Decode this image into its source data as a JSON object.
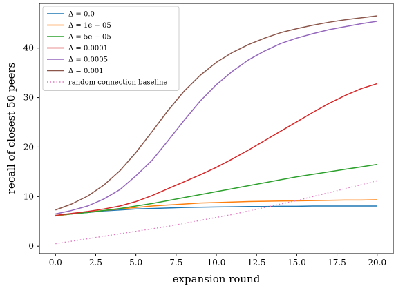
{
  "chart_data": {
    "type": "line",
    "xlabel": "expansion round",
    "ylabel": "recall of closest 50 peers",
    "xlim": [
      -1,
      21
    ],
    "ylim": [
      -1.5,
      49
    ],
    "xticks": [
      0,
      2.5,
      5,
      7.5,
      10,
      12.5,
      15,
      17.5,
      20
    ],
    "xtick_labels": [
      "0.0",
      "2.5",
      "5.0",
      "7.5",
      "10.0",
      "12.5",
      "15.0",
      "17.5",
      "20.0"
    ],
    "yticks": [
      0,
      10,
      20,
      30,
      40
    ],
    "ytick_labels": [
      "0",
      "10",
      "20",
      "30",
      "40"
    ],
    "grid": false,
    "legend_position": "top-left",
    "x": [
      0,
      1,
      2,
      3,
      4,
      5,
      6,
      7,
      8,
      9,
      10,
      11,
      12,
      13,
      14,
      15,
      16,
      17,
      18,
      19,
      20
    ],
    "series": [
      {
        "name": "Δ = 0.0",
        "color": "#1f77b4",
        "style": "solid",
        "values": [
          6.1,
          6.5,
          6.8,
          7.1,
          7.3,
          7.5,
          7.6,
          7.7,
          7.8,
          7.85,
          7.9,
          7.95,
          8.0,
          8.0,
          8.05,
          8.05,
          8.1,
          8.1,
          8.1,
          8.1,
          8.1
        ]
      },
      {
        "name": "Δ = 1e − 05",
        "color": "#ff7f0e",
        "style": "solid",
        "values": [
          6.1,
          6.5,
          6.9,
          7.2,
          7.5,
          7.8,
          8.1,
          8.3,
          8.5,
          8.7,
          8.8,
          8.9,
          9.0,
          9.05,
          9.1,
          9.15,
          9.2,
          9.25,
          9.3,
          9.3,
          9.35
        ]
      },
      {
        "name": "Δ = 5e − 05",
        "color": "#2ca02c",
        "style": "solid",
        "values": [
          6.2,
          6.5,
          6.8,
          7.2,
          7.6,
          8.1,
          8.6,
          9.2,
          9.8,
          10.4,
          11.0,
          11.6,
          12.2,
          12.8,
          13.4,
          14.0,
          14.5,
          15.0,
          15.5,
          16.0,
          16.5
        ]
      },
      {
        "name": "Δ = 0.0001",
        "color": "#d62728",
        "style": "solid",
        "values": [
          6.2,
          6.6,
          7.0,
          7.5,
          8.1,
          9.0,
          10.2,
          11.6,
          13.0,
          14.4,
          15.9,
          17.6,
          19.4,
          21.3,
          23.2,
          25.1,
          27.0,
          28.8,
          30.4,
          31.8,
          32.8
        ]
      },
      {
        "name": "Δ = 0.0005",
        "color": "#9467bd",
        "style": "solid",
        "values": [
          6.5,
          7.2,
          8.1,
          9.5,
          11.4,
          14.2,
          17.3,
          21.3,
          25.4,
          29.3,
          32.6,
          35.3,
          37.6,
          39.4,
          40.9,
          42.0,
          42.9,
          43.7,
          44.3,
          44.9,
          45.4
        ]
      },
      {
        "name": "Δ = 0.001",
        "color": "#8c564b",
        "style": "solid",
        "values": [
          7.3,
          8.5,
          10.1,
          12.3,
          15.2,
          18.9,
          23.1,
          27.4,
          31.3,
          34.5,
          37.1,
          39.1,
          40.7,
          42.0,
          43.1,
          43.9,
          44.6,
          45.2,
          45.7,
          46.1,
          46.5
        ]
      },
      {
        "name": "random connection baseline",
        "color": "#e377c2",
        "style": "dotted",
        "values": [
          0.5,
          1.0,
          1.5,
          2.0,
          2.5,
          3.0,
          3.5,
          4.0,
          4.6,
          5.2,
          5.8,
          6.4,
          7.1,
          7.8,
          8.5,
          9.2,
          10.0,
          10.8,
          11.6,
          12.4,
          13.2
        ]
      }
    ]
  }
}
